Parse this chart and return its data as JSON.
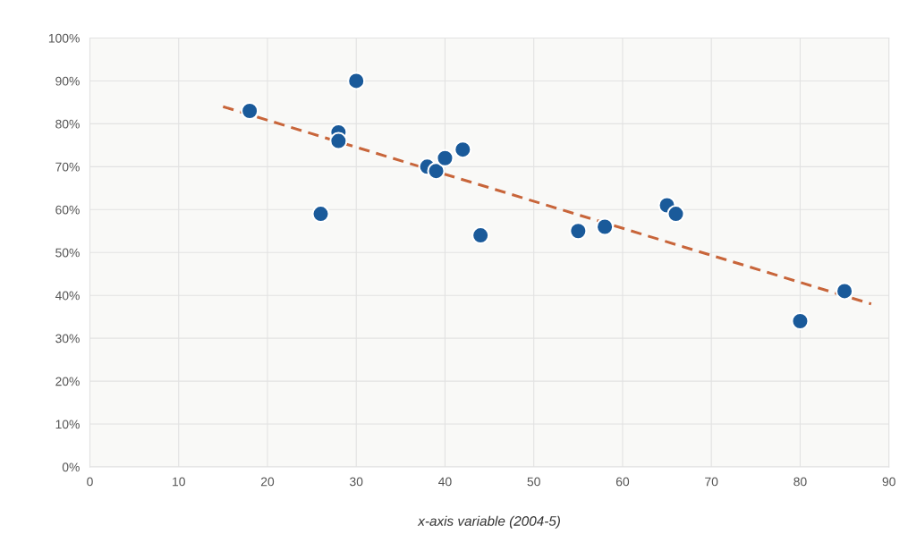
{
  "chart_data": {
    "type": "scatter",
    "xlabel": "x-axis variable (2004-5)",
    "xlim": [
      0,
      90
    ],
    "xticks": [
      0,
      10,
      20,
      30,
      40,
      50,
      60,
      70,
      80,
      90
    ],
    "ylim": [
      0,
      100
    ],
    "yticks": [
      {
        "value": 0,
        "label": "0%"
      },
      {
        "value": 10,
        "label": "10%"
      },
      {
        "value": 20,
        "label": "20%"
      },
      {
        "value": 30,
        "label": "30%"
      },
      {
        "value": 40,
        "label": "40%"
      },
      {
        "value": 50,
        "label": "50%"
      },
      {
        "value": 60,
        "label": "60%"
      },
      {
        "value": 70,
        "label": "70%"
      },
      {
        "value": 80,
        "label": "80%"
      },
      {
        "value": 90,
        "label": "90%"
      },
      {
        "value": 100,
        "label": "100%"
      }
    ],
    "grid": true,
    "series": [
      {
        "type": "line",
        "color": "#c8653a",
        "line_style": "dashed",
        "marker": "none",
        "x": [
          15,
          88
        ],
        "values": [
          84,
          38
        ]
      },
      {
        "color": "#1a5a9a",
        "marker": "circle",
        "x": [
          18,
          26,
          28,
          28,
          30,
          38,
          39,
          40,
          42,
          44,
          55,
          58,
          65,
          66,
          80,
          85
        ],
        "values": [
          83,
          59,
          78,
          76,
          90,
          70,
          69,
          72,
          74,
          54,
          55,
          56,
          61,
          59,
          34,
          41
        ]
      }
    ]
  }
}
